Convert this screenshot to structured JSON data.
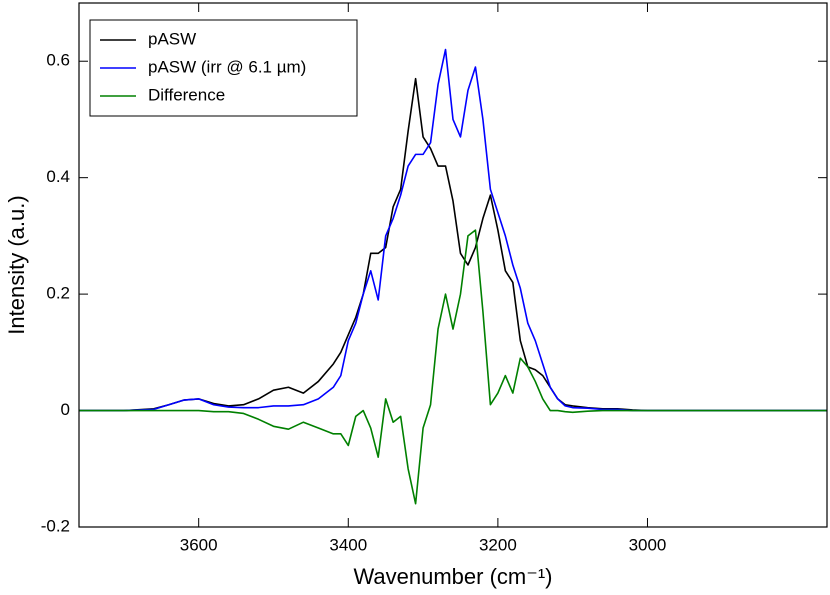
{
  "chart_data": {
    "type": "line",
    "x_label": "Wavenumber (cm⁻¹)",
    "y_label": "Intensity (a.u.)",
    "x": [
      3760,
      3700,
      3660,
      3640,
      3620,
      3600,
      3580,
      3560,
      3540,
      3520,
      3500,
      3480,
      3460,
      3440,
      3420,
      3410,
      3400,
      3390,
      3380,
      3370,
      3360,
      3350,
      3340,
      3330,
      3320,
      3310,
      3300,
      3290,
      3280,
      3270,
      3260,
      3250,
      3240,
      3230,
      3220,
      3210,
      3200,
      3190,
      3180,
      3170,
      3160,
      3150,
      3140,
      3130,
      3120,
      3110,
      3100,
      3080,
      3060,
      3040,
      3020,
      3000,
      2960,
      2900,
      2760
    ],
    "series": [
      {
        "name": "pASW",
        "color": "#000000",
        "values": [
          0,
          0,
          0.003,
          0.01,
          0.018,
          0.02,
          0.012,
          0.008,
          0.01,
          0.02,
          0.035,
          0.04,
          0.03,
          0.05,
          0.08,
          0.1,
          0.13,
          0.16,
          0.2,
          0.27,
          0.27,
          0.28,
          0.35,
          0.38,
          0.48,
          0.57,
          0.47,
          0.45,
          0.42,
          0.42,
          0.36,
          0.27,
          0.25,
          0.28,
          0.33,
          0.37,
          0.31,
          0.24,
          0.22,
          0.12,
          0.075,
          0.07,
          0.06,
          0.04,
          0.02,
          0.01,
          0.008,
          0.005,
          0.003,
          0.003,
          0.001,
          0,
          0,
          0,
          0
        ]
      },
      {
        "name": "pASW (irr @ 6.1 µm)",
        "color": "#0000ff",
        "values": [
          0,
          0,
          0.002,
          0.01,
          0.018,
          0.02,
          0.01,
          0.006,
          0.005,
          0.005,
          0.008,
          0.008,
          0.01,
          0.02,
          0.04,
          0.06,
          0.12,
          0.15,
          0.2,
          0.24,
          0.19,
          0.3,
          0.33,
          0.37,
          0.42,
          0.44,
          0.44,
          0.46,
          0.56,
          0.62,
          0.5,
          0.47,
          0.55,
          0.59,
          0.5,
          0.38,
          0.34,
          0.3,
          0.25,
          0.21,
          0.15,
          0.12,
          0.08,
          0.04,
          0.02,
          0.008,
          0.005,
          0.004,
          0.002,
          0.002,
          0,
          0,
          0,
          0,
          0
        ]
      },
      {
        "name": "Difference",
        "color": "#008000",
        "values": [
          0,
          0,
          0,
          0,
          0,
          0,
          -0.002,
          -0.002,
          -0.005,
          -0.015,
          -0.027,
          -0.032,
          -0.02,
          -0.03,
          -0.04,
          -0.04,
          -0.06,
          -0.01,
          0,
          -0.03,
          -0.08,
          0.02,
          -0.02,
          -0.01,
          -0.1,
          -0.16,
          -0.03,
          0.01,
          0.14,
          0.2,
          0.14,
          0.2,
          0.3,
          0.31,
          0.17,
          0.01,
          0.03,
          0.06,
          0.03,
          0.09,
          0.075,
          0.05,
          0.02,
          0,
          0,
          -0.002,
          -0.003,
          -0.001,
          0,
          0,
          0,
          0,
          0,
          0,
          0
        ]
      }
    ],
    "xlim": [
      3760,
      2760
    ],
    "xticks": [
      3600,
      3400,
      3200,
      3000
    ],
    "ylim": [
      -0.2,
      0.7
    ],
    "yticks": [
      -0.2,
      0,
      0.2,
      0.4,
      0.6
    ],
    "legend": "upper-left"
  }
}
